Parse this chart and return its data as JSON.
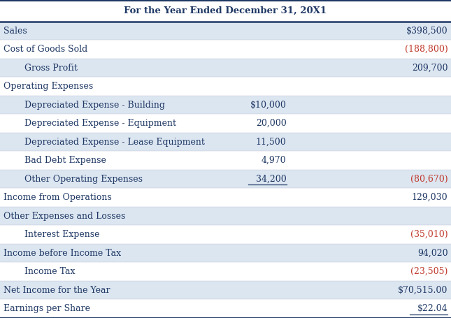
{
  "title": "For the Year Ended December 31, 20X1",
  "title_fontsize": 9.5,
  "header_color": "#dce6f1",
  "row_color_light": "#dce6f1",
  "row_color_white": "#ffffff",
  "text_color_dark": "#1f3864",
  "text_color_red": "#c0392b",
  "border_color": "#1f3864",
  "rows": [
    {
      "label": "Sales",
      "indent": false,
      "col2": "",
      "col3": "$398,500",
      "col3_red": false,
      "col3_ul": false,
      "col2_ul": false,
      "bg": "light"
    },
    {
      "label": "Cost of Goods Sold",
      "indent": false,
      "col2": "",
      "col3": "(188,800)",
      "col3_red": true,
      "col3_ul": false,
      "col2_ul": false,
      "bg": "white"
    },
    {
      "label": "Gross Profit",
      "indent": true,
      "col2": "",
      "col3": "209,700",
      "col3_red": false,
      "col3_ul": false,
      "col2_ul": false,
      "bg": "light"
    },
    {
      "label": "Operating Expenses",
      "indent": false,
      "col2": "",
      "col3": "",
      "col3_red": false,
      "col3_ul": false,
      "col2_ul": false,
      "bg": "white"
    },
    {
      "label": "Depreciated Expense - Building",
      "indent": true,
      "col2": "$10,000",
      "col3": "",
      "col3_red": false,
      "col3_ul": false,
      "col2_ul": false,
      "bg": "light"
    },
    {
      "label": "Depreciated Expense - Equipment",
      "indent": true,
      "col2": "20,000",
      "col3": "",
      "col3_red": false,
      "col3_ul": false,
      "col2_ul": false,
      "bg": "white"
    },
    {
      "label": "Depreciated Expense - Lease Equipment",
      "indent": true,
      "col2": "11,500",
      "col3": "",
      "col3_red": false,
      "col3_ul": false,
      "col2_ul": false,
      "bg": "light"
    },
    {
      "label": "Bad Debt Expense",
      "indent": true,
      "col2": "4,970",
      "col3": "",
      "col3_red": false,
      "col3_ul": false,
      "col2_ul": false,
      "bg": "white"
    },
    {
      "label": "Other Operating Expenses",
      "indent": true,
      "col2": "34,200",
      "col3": "(80,670)",
      "col3_red": true,
      "col3_ul": false,
      "col2_ul": true,
      "bg": "light"
    },
    {
      "label": "Income from Operations",
      "indent": false,
      "col2": "",
      "col3": "129,030",
      "col3_red": false,
      "col3_ul": false,
      "col2_ul": false,
      "bg": "white"
    },
    {
      "label": "Other Expenses and Losses",
      "indent": false,
      "col2": "",
      "col3": "",
      "col3_red": false,
      "col3_ul": false,
      "col2_ul": false,
      "bg": "light"
    },
    {
      "label": "Interest Expense",
      "indent": true,
      "col2": "",
      "col3": "(35,010)",
      "col3_red": true,
      "col3_ul": false,
      "col2_ul": false,
      "bg": "white"
    },
    {
      "label": "Income before Income Tax",
      "indent": false,
      "col2": "",
      "col3": "94,020",
      "col3_red": false,
      "col3_ul": false,
      "col2_ul": false,
      "bg": "light"
    },
    {
      "label": "Income Tax",
      "indent": true,
      "col2": "",
      "col3": "(23,505)",
      "col3_red": true,
      "col3_ul": false,
      "col2_ul": false,
      "bg": "white"
    },
    {
      "label": "Net Income for the Year",
      "indent": false,
      "col2": "",
      "col3": "$70,515.00",
      "col3_red": false,
      "col3_ul": false,
      "col2_ul": false,
      "bg": "light"
    },
    {
      "label": "Earnings per Share",
      "indent": false,
      "col2": "",
      "col3": "$22.04",
      "col3_red": false,
      "col3_ul": true,
      "col2_ul": false,
      "bg": "white"
    }
  ],
  "figsize": [
    6.45,
    4.55
  ],
  "dpi": 100
}
